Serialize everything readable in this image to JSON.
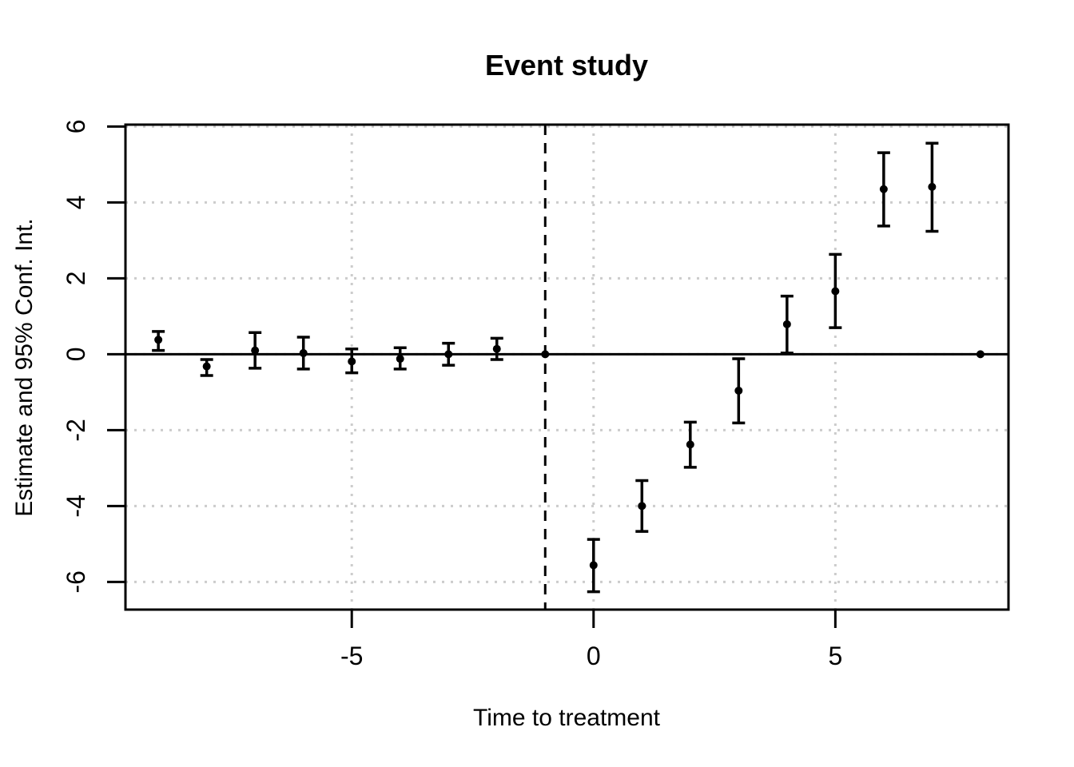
{
  "title": "Event study",
  "x_axis": {
    "label": "Time to treatment",
    "ticks": [
      -5,
      0,
      5
    ]
  },
  "y_axis": {
    "label": "Estimate and 95% Conf. Int.",
    "ticks": [
      -6,
      -4,
      -2,
      0,
      2,
      4,
      6
    ]
  },
  "style": {
    "background": "#ffffff",
    "point_color": "#000000",
    "errorbar_color": "#000000",
    "axis_color": "#000000",
    "gridline_color": "#cccccc",
    "zero_line_color": "#000000",
    "treatment_line_color": "#000000"
  },
  "chart_data": {
    "type": "scatter",
    "title": "Event study",
    "xlabel": "Time to treatment",
    "ylabel": "Estimate and 95% Conf. Int.",
    "xlim": [
      -9.68,
      8.58
    ],
    "ylim": [
      -6.73,
      6.05
    ],
    "grid": true,
    "x_gridlines": [
      -5,
      0,
      5
    ],
    "y_gridlines": [
      -6,
      -4,
      -2,
      0,
      2,
      4,
      6
    ],
    "zero_reference_line_y": 0,
    "dashed_vertical_line_x": -1,
    "series": [
      {
        "name": "Estimate with 95% confidence interval",
        "x": [
          -9,
          -8,
          -7,
          -6,
          -5,
          -4,
          -3,
          -2,
          -1,
          0,
          1,
          2,
          3,
          4,
          5,
          6,
          7,
          8
        ],
        "estimate": [
          0.38,
          -0.32,
          0.1,
          0.03,
          -0.19,
          -0.12,
          0.0,
          0.14,
          0.0,
          -5.56,
          -4.0,
          -2.38,
          -0.96,
          0.79,
          1.66,
          4.35,
          4.41,
          0.0
        ],
        "ci_low": [
          0.1,
          -0.56,
          -0.37,
          -0.39,
          -0.49,
          -0.39,
          -0.29,
          -0.14,
          null,
          -6.26,
          -4.67,
          -2.98,
          -1.81,
          0.03,
          0.7,
          3.38,
          3.24,
          null
        ],
        "ci_high": [
          0.6,
          -0.14,
          0.57,
          0.45,
          0.14,
          0.17,
          0.29,
          0.42,
          null,
          -4.88,
          -3.33,
          -1.79,
          -0.12,
          1.53,
          2.63,
          5.31,
          5.56,
          null
        ]
      }
    ],
    "notes": "Reference period at x = -1 (estimate 0, no CI); last point x = 8 drawn on zero line without CI"
  }
}
